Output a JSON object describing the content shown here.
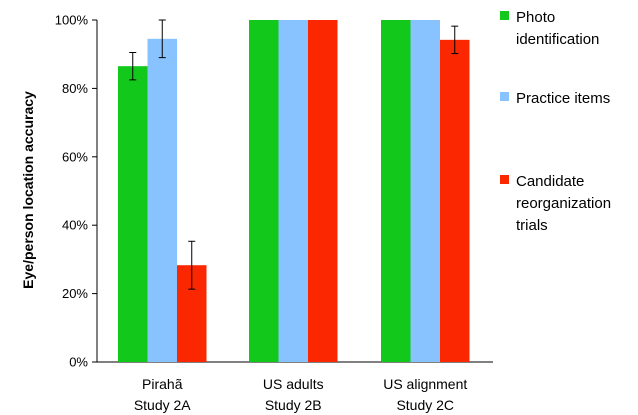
{
  "chart_data": {
    "type": "bar",
    "title": "",
    "ylabel": "Eye/person location accuracy",
    "xlabel": "",
    "ylim": [
      0,
      100
    ],
    "yticks": [
      0,
      20,
      40,
      60,
      80,
      100
    ],
    "ytick_format": "%",
    "grid": false,
    "legend_position": "right",
    "categories": [
      [
        "Pirahã",
        "Study 2A"
      ],
      [
        "US adults",
        "Study 2B"
      ],
      [
        "US alignment",
        "Study 2C"
      ]
    ],
    "series": [
      {
        "name": [
          "Photo",
          "identification"
        ],
        "color": "#12c81a",
        "values": [
          86.5,
          100,
          100
        ],
        "errors": [
          4,
          null,
          null
        ]
      },
      {
        "name": [
          "Practice items"
        ],
        "color": "#88c3ff",
        "values": [
          94.5,
          100,
          100
        ],
        "errors": [
          5.5,
          null,
          null
        ]
      },
      {
        "name": [
          "Candidate",
          "reorganization",
          "trials"
        ],
        "color": "#fa2700",
        "values": [
          28.3,
          100,
          94.2
        ],
        "errors": [
          7,
          null,
          4
        ]
      }
    ]
  }
}
